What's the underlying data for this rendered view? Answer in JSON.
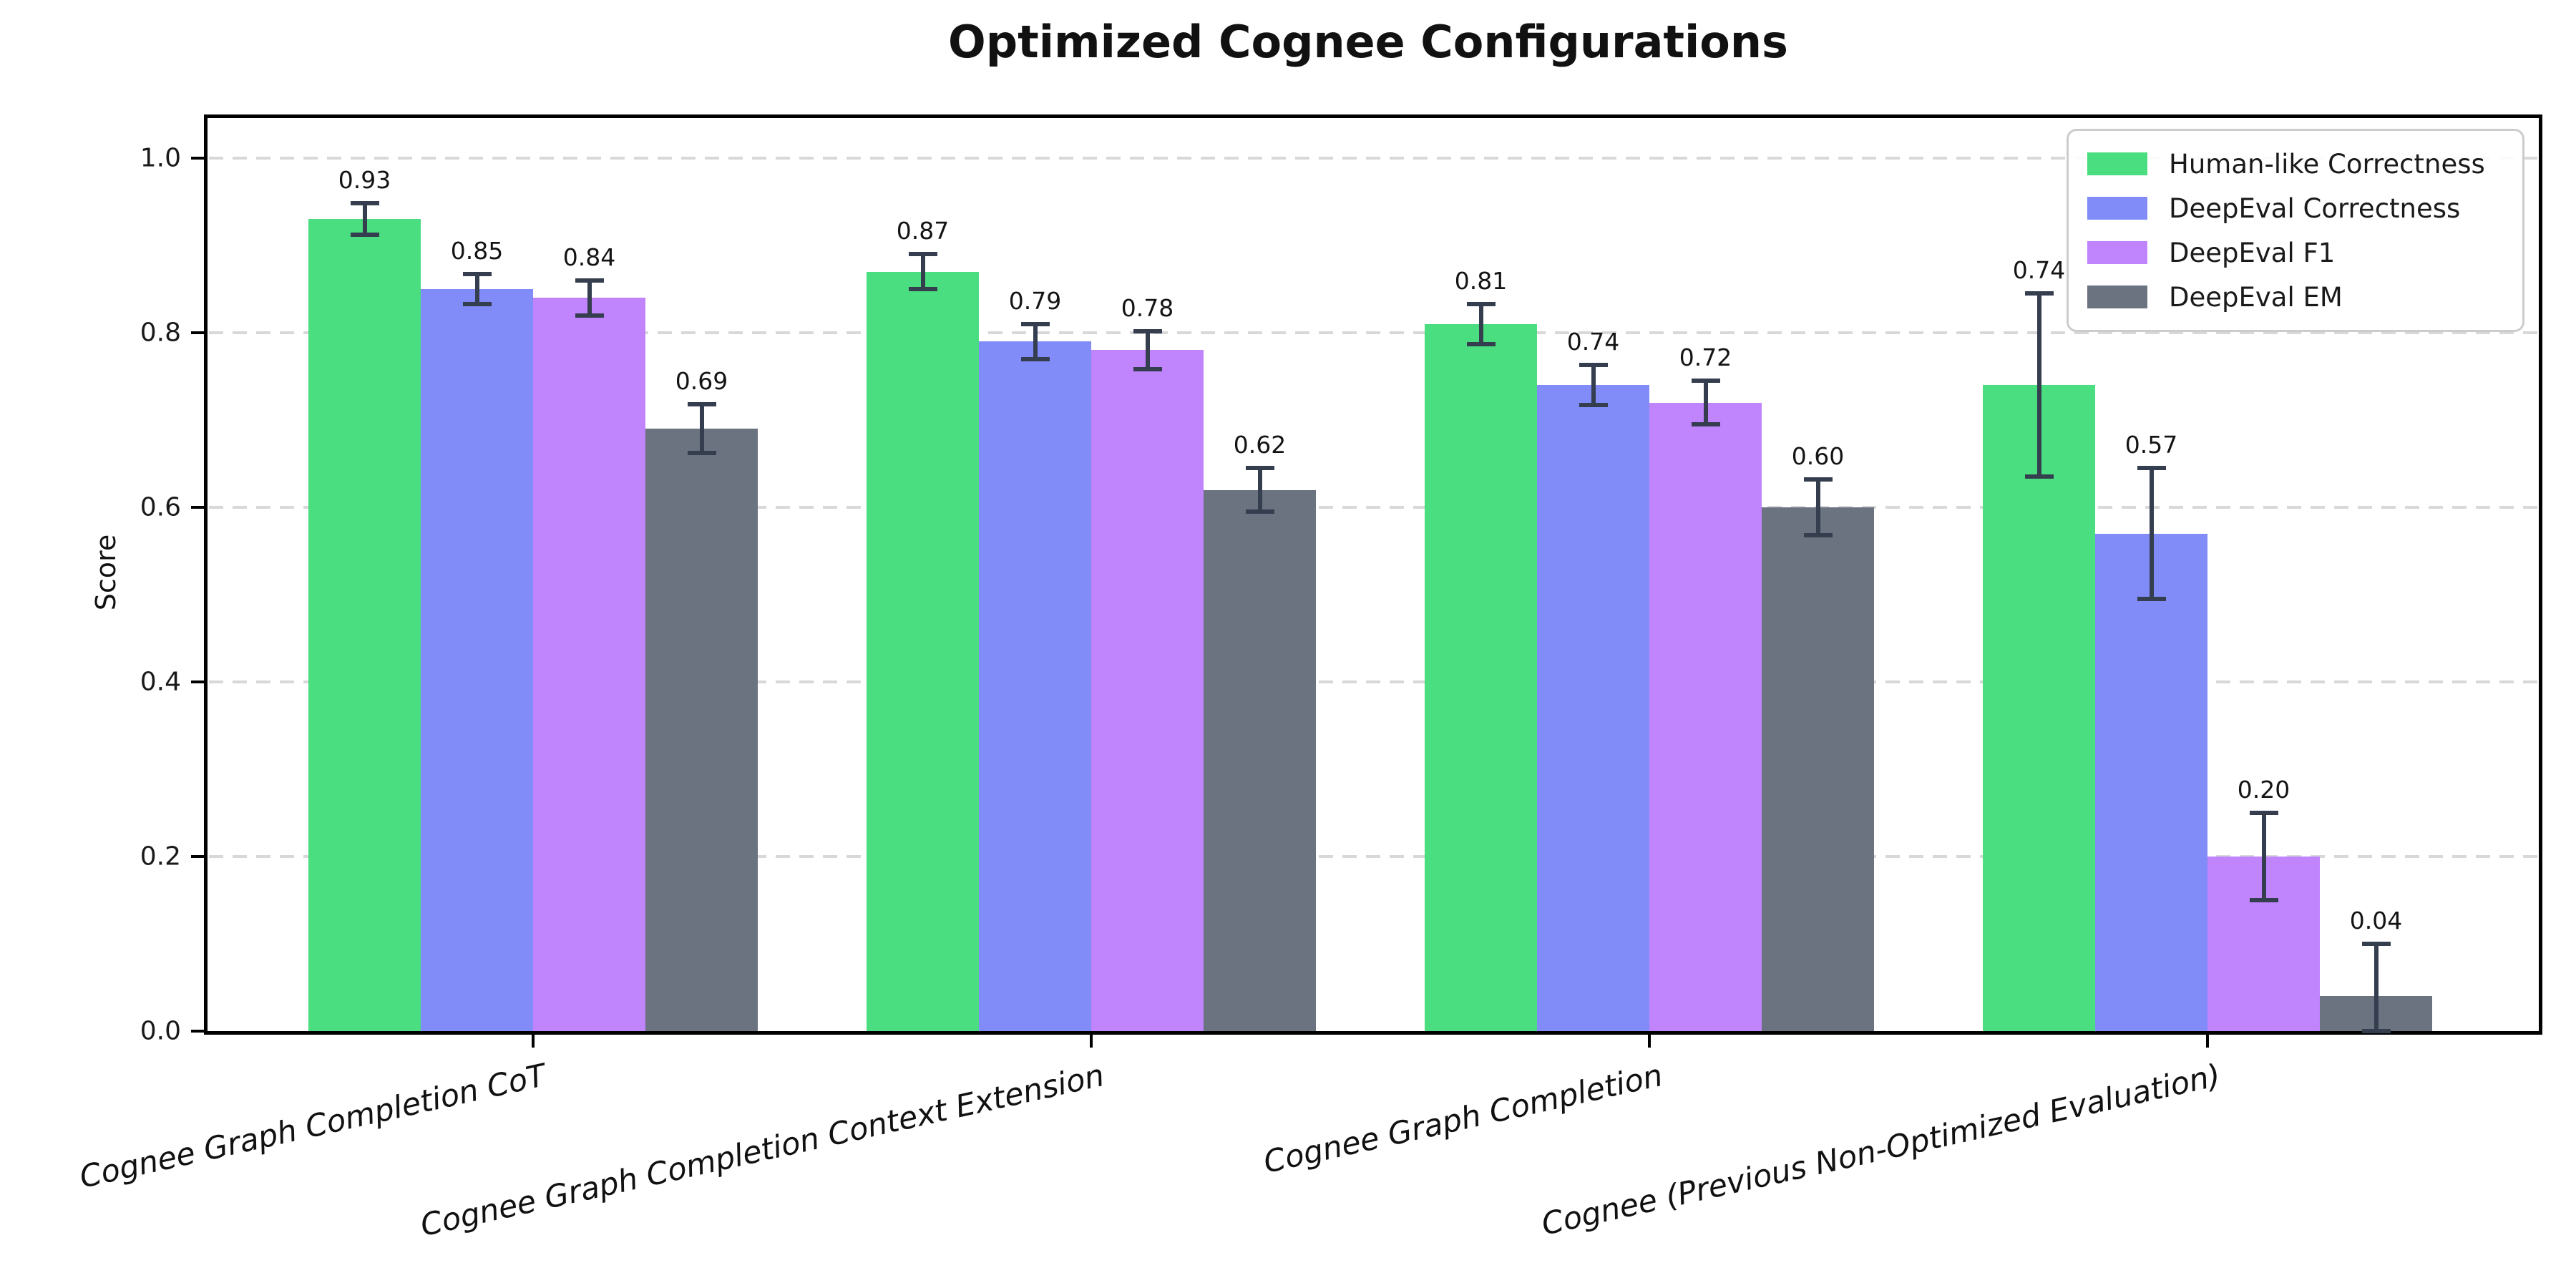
{
  "chart_data": {
    "type": "bar",
    "title": "Optimized Cognee Configurations",
    "xlabel": "",
    "ylabel": "Score",
    "ylim": [
      0.0,
      1.05
    ],
    "yticks": [
      0.0,
      0.2,
      0.4,
      0.6,
      0.8,
      1.0
    ],
    "grid": {
      "axis": "y",
      "style": "dashed",
      "color": "#d8d8d8"
    },
    "legend_position": "upper right",
    "bar_value_label_decimals": 2,
    "errorbar_color": "#343e4e",
    "spine_color": "#000000",
    "categories": [
      "Cognee Graph Completion CoT",
      "Cognee Graph Completion Context Extension",
      "Cognee Graph Completion",
      "Cognee (Previous Non-Optimized Evaluation)"
    ],
    "series": [
      {
        "name": "Human-like Correctness",
        "color": "#4ade80",
        "values": [
          0.93,
          0.87,
          0.81,
          0.74
        ],
        "errors": [
          0.018,
          0.02,
          0.023,
          0.105
        ]
      },
      {
        "name": "DeepEval Correctness",
        "color": "#818cf8",
        "values": [
          0.85,
          0.79,
          0.74,
          0.57
        ],
        "errors": [
          0.017,
          0.02,
          0.023,
          0.075
        ]
      },
      {
        "name": "DeepEval F1",
        "color": "#c084fc",
        "values": [
          0.84,
          0.78,
          0.72,
          0.2
        ],
        "errors": [
          0.02,
          0.022,
          0.025,
          0.05
        ]
      },
      {
        "name": "DeepEval EM",
        "color": "#6b7280",
        "values": [
          0.69,
          0.62,
          0.6,
          0.04
        ],
        "errors": [
          0.028,
          0.025,
          0.032,
          0.06
        ]
      }
    ]
  }
}
